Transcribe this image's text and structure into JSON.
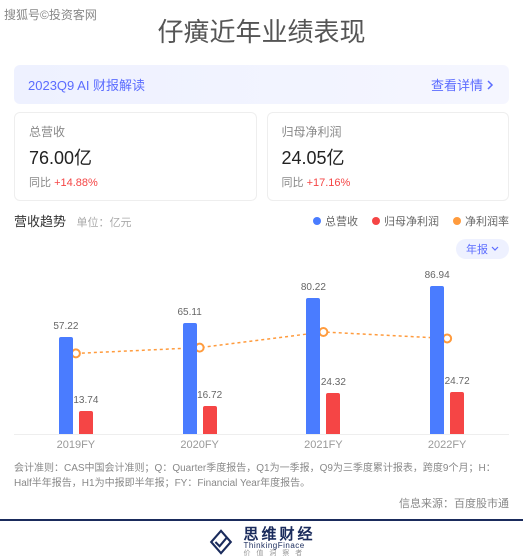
{
  "watermark": "搜狐号©投资客网",
  "title": "仔癀近年业绩表现",
  "ai_banner": {
    "label": "2023Q9 AI 财报解读",
    "link": "查看详情"
  },
  "metrics": [
    {
      "label": "总营收",
      "value": "76.00亿",
      "yoy_prefix": "同比 ",
      "yoy": "+14.88%",
      "up": true
    },
    {
      "label": "归母净利润",
      "value": "24.05亿",
      "yoy_prefix": "同比 ",
      "yoy": "+17.16%",
      "up": true
    }
  ],
  "trend": {
    "title": "营收趋势",
    "unit": "单位：亿元"
  },
  "legend": [
    {
      "label": "总营收",
      "color": "#4a7cff"
    },
    {
      "label": "归母净利润",
      "color": "#f54545"
    },
    {
      "label": "净利润率",
      "color": "#ff9b3d"
    }
  ],
  "period_btn": "年报",
  "chart": {
    "ymax": 100,
    "colors": {
      "revenue": "#4a7cff",
      "profit": "#f54545",
      "margin_line": "#ff9b3d",
      "marker_stroke": "#ff9b3d"
    },
    "categories": [
      "2019FY",
      "2020FY",
      "2021FY",
      "2022FY"
    ],
    "revenue": [
      57.22,
      65.11,
      80.22,
      86.94
    ],
    "profit": [
      13.74,
      16.72,
      24.32,
      24.72
    ],
    "margin_pct": [
      24.0,
      25.7,
      30.3,
      28.4
    ]
  },
  "footnote": "会计准则：CAS中国会计准则；Q：Quarter季度报告，Q1为一季报，Q9为三季度累计报表，跨度9个月；H：Half半年报告，H1为中报即半年报；FY：Financial Year年度报告。",
  "source": "信息来源：百度股市通",
  "brand": {
    "cn": "思维财经",
    "en": "ThinkingFinace",
    "sub": "价 值 洞 察 者"
  }
}
